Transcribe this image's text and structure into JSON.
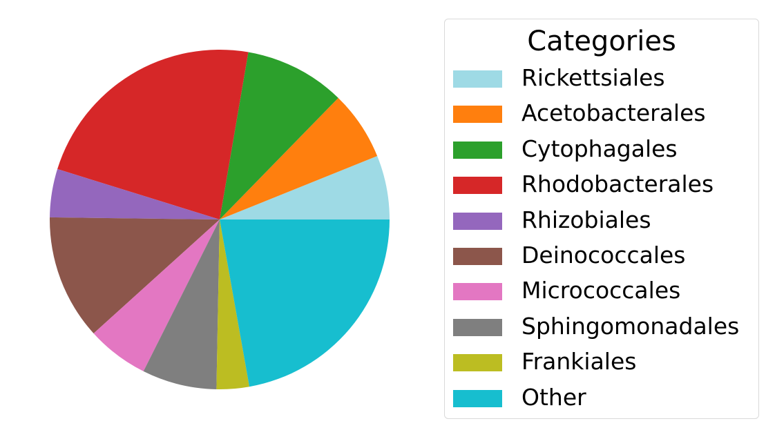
{
  "chart_data": {
    "type": "pie",
    "legend_title": "Categories",
    "legend_position": "right",
    "start_angle_deg": 0,
    "direction": "counterclockwise",
    "slices": [
      {
        "label": "Rickettsiales",
        "value": 6.1,
        "color": "#9edae5"
      },
      {
        "label": "Acetobacterales",
        "value": 6.6,
        "color": "#ff7f0e"
      },
      {
        "label": "Cytophagales",
        "value": 9.6,
        "color": "#2ca02c"
      },
      {
        "label": "Rhodobacterales",
        "value": 22.9,
        "color": "#d62728"
      },
      {
        "label": "Rhizobiales",
        "value": 4.6,
        "color": "#9467bd"
      },
      {
        "label": "Deinococcales",
        "value": 11.9,
        "color": "#8c564b"
      },
      {
        "label": "Micrococcales",
        "value": 5.9,
        "color": "#e377c2"
      },
      {
        "label": "Sphingomonadales",
        "value": 7.1,
        "color": "#7f7f7f"
      },
      {
        "label": "Frankiales",
        "value": 3.1,
        "color": "#bcbd22"
      },
      {
        "label": "Other",
        "value": 22.2,
        "color": "#17becf"
      }
    ]
  }
}
